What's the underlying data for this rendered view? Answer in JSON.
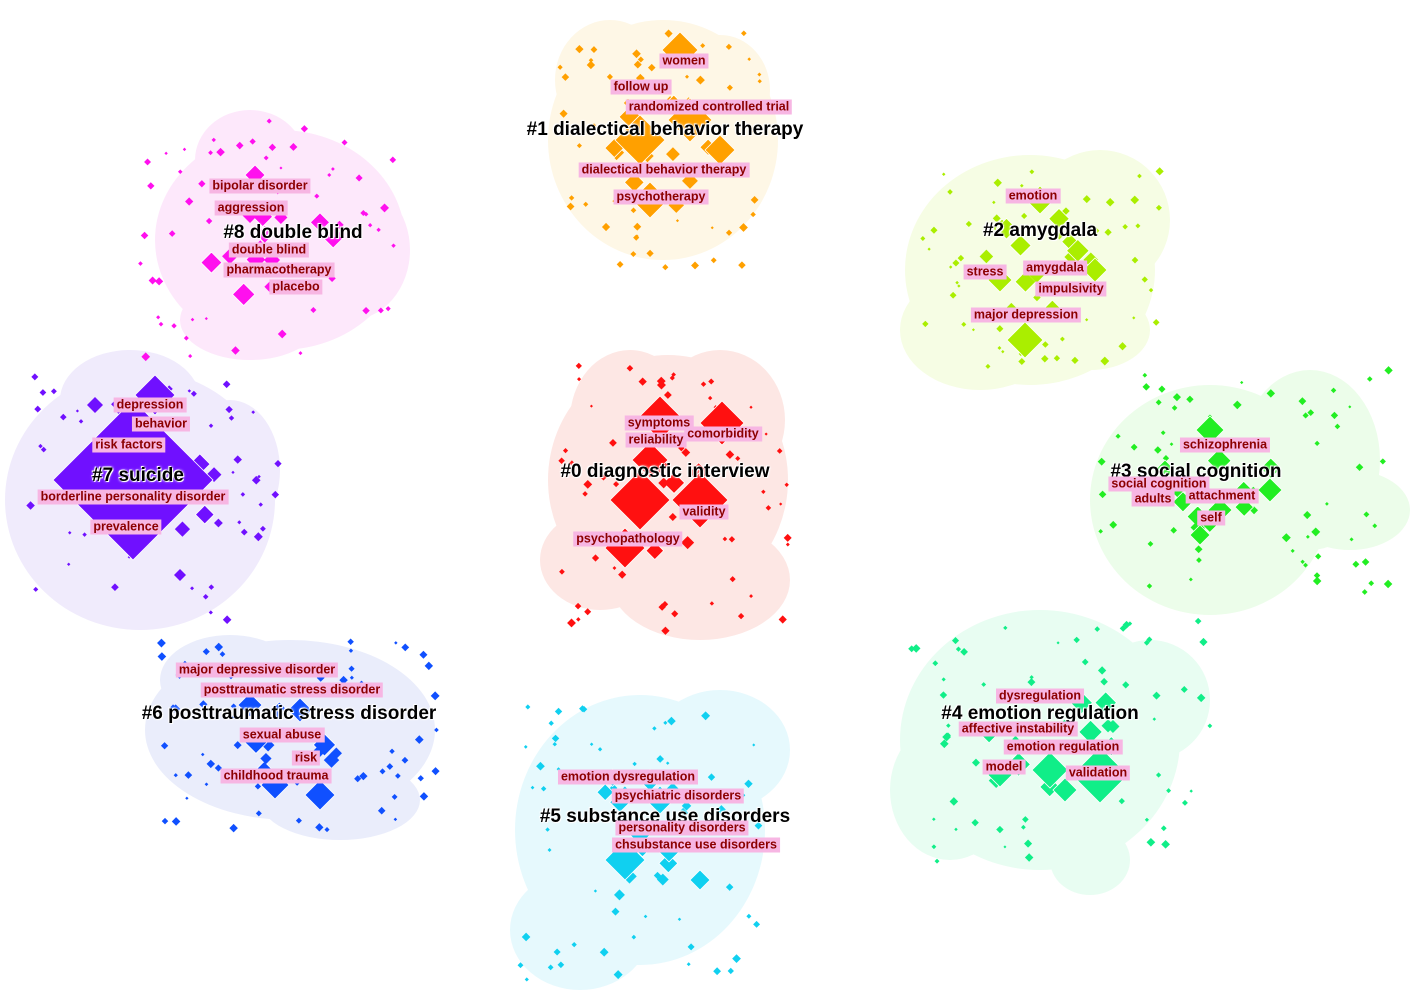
{
  "clusters": [
    {
      "id": "c0",
      "label": "#0 diagnostic interview",
      "color": "#ff1010",
      "halo": "#fde7e4",
      "keywords": [
        "symptoms",
        "reliability",
        "comorbidity",
        "validity",
        "psychopathology"
      ]
    },
    {
      "id": "c1",
      "label": "#1 dialectical behavior therapy",
      "color": "#ffa000",
      "halo": "#fef7e6",
      "keywords": [
        "women",
        "follow up",
        "randomized controlled trial",
        "dialectical behavior therapy",
        "psychotherapy"
      ]
    },
    {
      "id": "c2",
      "label": "#2 amygdala",
      "color": "#aaee00",
      "halo": "#f6fde4",
      "keywords": [
        "emotion",
        "stress",
        "amygdala",
        "impulsivity",
        "major depression"
      ]
    },
    {
      "id": "c3",
      "label": "#3 social cognition",
      "color": "#22ee22",
      "halo": "#ecfdea",
      "keywords": [
        "schizophrenia",
        "social cognition",
        "adults",
        "attachment",
        "self"
      ]
    },
    {
      "id": "c4",
      "label": "#4 emotion regulation",
      "color": "#10ee88",
      "halo": "#e8fdf2",
      "keywords": [
        "dysregulation",
        "affective instability",
        "emotion regulation",
        "model",
        "validation"
      ]
    },
    {
      "id": "c5",
      "label": "#5 substance use disorders",
      "color": "#10d0f0",
      "halo": "#e6f9fd",
      "keywords": [
        "emotion dysregulation",
        "psychiatric disorders",
        "personality disorders",
        "chsubstance use disorders"
      ]
    },
    {
      "id": "c6",
      "label": "#6 posttraumatic stress disorder",
      "color": "#1050ff",
      "halo": "#eaedfb",
      "keywords": [
        "major depressive disorder",
        "posttraumatic stress disorder",
        "sexual abuse",
        "risk",
        "childhood trauma"
      ]
    },
    {
      "id": "c7",
      "label": "#7 suicide",
      "color": "#7010ff",
      "halo": "#f0ebfc",
      "keywords": [
        "depression",
        "behavior",
        "risk factors",
        "borderline personality disorder",
        "prevalence"
      ]
    },
    {
      "id": "c8",
      "label": "#8 double blind",
      "color": "#ff10ee",
      "halo": "#fde8fb",
      "keywords": [
        "bipolar disorder",
        "aggression",
        "double blind",
        "pharmacotherapy",
        "placebo"
      ]
    }
  ]
}
